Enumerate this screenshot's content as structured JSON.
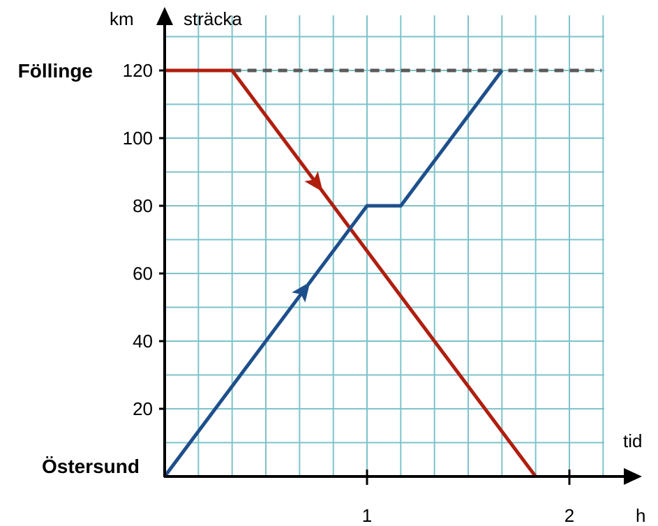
{
  "chart_data": {
    "type": "line",
    "x_unit": "h",
    "x_label": "tid",
    "y_unit": "km",
    "y_label": "sträcka",
    "xlim": [
      0,
      2.1667
    ],
    "ylim": [
      0,
      130
    ],
    "x_ticks": [
      {
        "value": 1,
        "label": "1"
      },
      {
        "value": 2,
        "label": "2"
      }
    ],
    "y_ticks": [
      {
        "value": 20,
        "label": "20"
      },
      {
        "value": 40,
        "label": "40"
      },
      {
        "value": 60,
        "label": "60"
      },
      {
        "value": 80,
        "label": "80"
      },
      {
        "value": 100,
        "label": "100"
      },
      {
        "value": 120,
        "label": "120"
      }
    ],
    "grid": true,
    "places": [
      {
        "value": 120,
        "label": "Föllinge"
      },
      {
        "value": 0,
        "label": "Östersund"
      }
    ],
    "reference_line": {
      "y": 120,
      "style": "dashed",
      "color": "#5a5a5a"
    },
    "series": [
      {
        "color": "#b01e0e",
        "direction": "down",
        "points": [
          [
            0,
            120
          ],
          [
            0.333,
            120
          ],
          [
            1.833,
            0
          ]
        ]
      },
      {
        "color": "#1e4f8c",
        "direction": "up",
        "points": [
          [
            0,
            0
          ],
          [
            1,
            80
          ],
          [
            1.167,
            80
          ],
          [
            1.667,
            120
          ]
        ]
      }
    ],
    "colors": {
      "grid": "#7dc3c9",
      "axis": "#000000"
    }
  }
}
